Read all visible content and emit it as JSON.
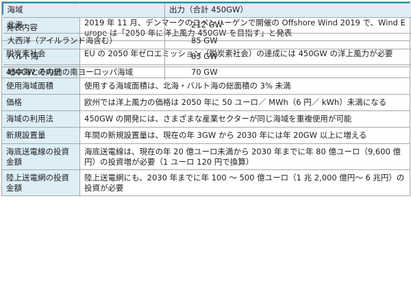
{
  "header": {
    "col1": "項目",
    "col2": "内容"
  },
  "rows": [
    {
      "label": "発表内容",
      "content": "2019 年 11 月、デンマークのコペンハーゲンで開催の Offshore Wind 2019 で、Wind Europe は「2050 年に洋上風力 450GW を目指す」と発表"
    },
    {
      "label": "脱炭素社会",
      "content": "EU の 2050 年ゼロエミッション（脱炭素社会）の達成には 450GW の洋上風力が必要"
    },
    {
      "label": "450GW の内訳"
    },
    {
      "label": "使用海域面積",
      "content": "使用する海域面積は、北海・バルト海の総面積の 3% 未満"
    },
    {
      "label": "価格",
      "content": "欧州では洋上風力の価格は 2050 年に 50 ユーロ／ MWh（6 円／ kWh）未満になる"
    },
    {
      "label": "海域の利用法",
      "content": "450GW の開発には、さまざまな産業セクターが同じ海域を重複使用が可能"
    },
    {
      "label": "新規設置量",
      "content": "年間の新規設置量は、現在の年 3GW から 2030 年には年 20GW 以上に増える"
    },
    {
      "label": "海底送電線の投資金額",
      "content": "海底送電線は、現在の年 20 億ユーロ未満から 2030 年までに年 80 億ユーロ（9,600 億円）の投資増が必要（1 ユーロ 120 円で換算）"
    },
    {
      "label": "陸上送電網の投資金額",
      "content": "陸上送電網にも、2030 年までに年 100 ～ 500 億ユーロ（1 兆 2,000 億円～ 6 兆円）の投資が必要"
    }
  ],
  "breakdown": {
    "header": {
      "region": "海域",
      "output": "出力（合計 450GW）"
    },
    "items": [
      {
        "region": "北海",
        "output": "212 GW"
      },
      {
        "region": "大西洋（アイルランド海含む）",
        "output": "85 GW"
      },
      {
        "region": "バルト海",
        "output": "83 GW"
      },
      {
        "region": "地中海とその他の南ヨーロッパ海域",
        "output": "70 GW"
      }
    ]
  }
}
